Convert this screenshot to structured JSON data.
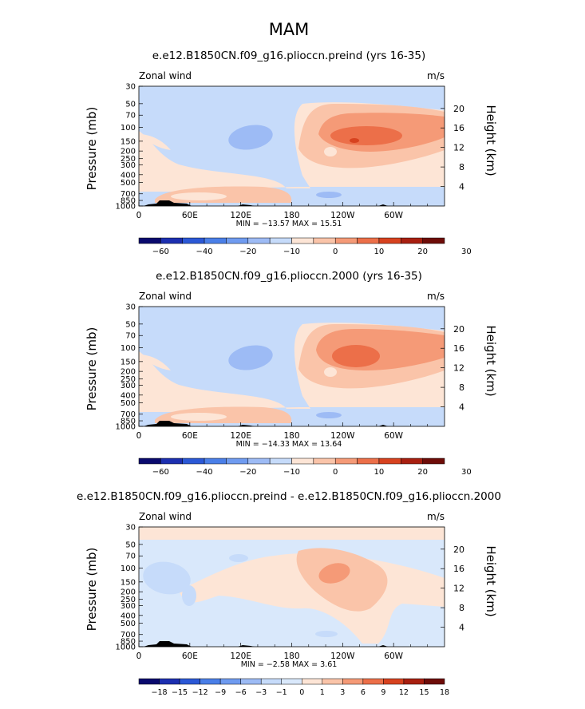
{
  "page": {
    "title": "MAM"
  },
  "colors": {
    "background": "#ffffff",
    "wind_scale": [
      "#0a0a6e",
      "#1c2fb0",
      "#2b58d6",
      "#4a7fe8",
      "#6f9bf0",
      "#9dbbf5",
      "#c6dbfa",
      "#fde5d6",
      "#fac4a9",
      "#f59a77",
      "#ec6f49",
      "#d7421f",
      "#a81f10",
      "#6e0c08"
    ],
    "diff_scale": [
      "#0a0a6e",
      "#1c2fb0",
      "#2b58d6",
      "#4a7fe8",
      "#6f9bf0",
      "#9dbbf5",
      "#c6dbfa",
      "#d9e8fb",
      "#fde5d6",
      "#fac4a9",
      "#f59a77",
      "#ec6f49",
      "#d7421f",
      "#a81f10",
      "#6e0c08"
    ]
  },
  "chart_data": [
    {
      "type": "heatmap",
      "title": "e.e12.B1850CN.f09_g16.plioccn.preind (yrs 16-35)",
      "left_label": "Zonal wind",
      "units": "m/s",
      "xticks": [
        "0",
        "60E",
        "120E",
        "180",
        "120W",
        "60W"
      ],
      "xlim": [
        0,
        360
      ],
      "ylabel": "Pressure (mb)",
      "yticks": [
        "30",
        "50",
        "70",
        "100",
        "150",
        "200",
        "250",
        "300",
        "400",
        "500",
        "700",
        "850",
        "1000"
      ],
      "ylim": [
        1000,
        30
      ],
      "y2label": "Height (km)",
      "y2ticks": [
        "4",
        "8",
        "12",
        "16",
        "20"
      ],
      "stats": "MIN = −13.57   MAX =  15.51",
      "colorbar_labels": [
        "−60",
        "−40",
        "−20",
        "−10",
        "0",
        "10",
        "20",
        "30"
      ],
      "colorbar_levels": [
        -60,
        -50,
        -40,
        -30,
        -20,
        -15,
        -10,
        -5,
        0,
        5,
        10,
        15,
        20,
        25,
        30
      ],
      "min": -13.57,
      "max": 15.51
    },
    {
      "type": "heatmap",
      "title": "e.e12.B1850CN.f09_g16.plioccn.2000 (yrs 16-35)",
      "left_label": "Zonal wind",
      "units": "m/s",
      "xticks": [
        "0",
        "60E",
        "120E",
        "180",
        "120W",
        "60W"
      ],
      "xlim": [
        0,
        360
      ],
      "ylabel": "Pressure (mb)",
      "yticks": [
        "30",
        "50",
        "70",
        "100",
        "150",
        "200",
        "250",
        "300",
        "400",
        "500",
        "700",
        "850",
        "1000"
      ],
      "ylim": [
        1000,
        30
      ],
      "y2label": "Height (km)",
      "y2ticks": [
        "4",
        "8",
        "12",
        "16",
        "20"
      ],
      "stats": "MIN = −14.33   MAX =  13.64",
      "colorbar_labels": [
        "−60",
        "−40",
        "−20",
        "−10",
        "0",
        "10",
        "20",
        "30"
      ],
      "colorbar_levels": [
        -60,
        -50,
        -40,
        -30,
        -20,
        -15,
        -10,
        -5,
        0,
        5,
        10,
        15,
        20,
        25,
        30
      ],
      "min": -14.33,
      "max": 13.64
    },
    {
      "type": "heatmap",
      "title": "e.e12.B1850CN.f09_g16.plioccn.preind - e.e12.B1850CN.f09_g16.plioccn.2000",
      "left_label": "Zonal wind",
      "units": "m/s",
      "xticks": [
        "0",
        "60E",
        "120E",
        "180",
        "120W",
        "60W"
      ],
      "xlim": [
        0,
        360
      ],
      "ylabel": "Pressure (mb)",
      "yticks": [
        "30",
        "50",
        "70",
        "100",
        "150",
        "200",
        "250",
        "300",
        "400",
        "500",
        "700",
        "850",
        "1000"
      ],
      "ylim": [
        1000,
        30
      ],
      "y2label": "Height (km)",
      "y2ticks": [
        "4",
        "8",
        "12",
        "16",
        "20"
      ],
      "stats": "MIN =   −2.58   MAX =    3.61",
      "colorbar_labels": [
        "−18",
        "−15",
        "−12",
        "−9",
        "−6",
        "−3",
        "−1",
        "0",
        "1",
        "3",
        "6",
        "9",
        "12",
        "15",
        "18"
      ],
      "min": -2.58,
      "max": 3.61
    }
  ]
}
